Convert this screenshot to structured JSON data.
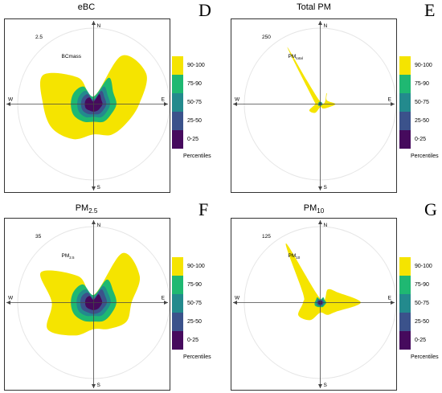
{
  "legend": {
    "levels": [
      {
        "label": "90-100",
        "color": "#f5e400"
      },
      {
        "label": "75-90",
        "color": "#1fb872"
      },
      {
        "label": "50-75",
        "color": "#238a8d"
      },
      {
        "label": "25-50",
        "color": "#3b528b"
      },
      {
        "label": "0-25",
        "color": "#460a5d"
      }
    ],
    "title": "Percentiles"
  },
  "directions": {
    "n": "N",
    "s": "S",
    "e": "E",
    "w": "W"
  },
  "chart_data": [
    {
      "type": "area",
      "panel_letter": "D",
      "title": "eBC",
      "inner_label": {
        "main": "BCmass",
        "sub": ""
      },
      "radial_tick": "2.5",
      "levels": [
        "90-100",
        "75-90",
        "50-75",
        "25-50",
        "0-25"
      ],
      "rmax": 3,
      "directions_deg": [
        0,
        30,
        60,
        90,
        120,
        150,
        180,
        210,
        240,
        270,
        300,
        330
      ],
      "series": [
        {
          "values": [
            0.3,
            2.2,
            2.4,
            1.8,
            1.5,
            1.4,
            1.2,
            1.6,
            1.9,
            2.0,
            2.3,
            1.2
          ]
        },
        {
          "values": [
            0.3,
            1.2,
            0.9,
            0.9,
            0.8,
            0.8,
            0.7,
            0.8,
            0.9,
            0.9,
            0.9,
            0.8
          ]
        },
        {
          "values": [
            0.2,
            0.8,
            0.65,
            0.65,
            0.6,
            0.6,
            0.5,
            0.6,
            0.65,
            0.65,
            0.65,
            0.6
          ]
        },
        {
          "values": [
            0.15,
            0.6,
            0.5,
            0.5,
            0.45,
            0.45,
            0.4,
            0.45,
            0.5,
            0.5,
            0.5,
            0.45
          ]
        },
        {
          "values": [
            0.1,
            0.45,
            0.35,
            0.35,
            0.3,
            0.3,
            0.3,
            0.3,
            0.35,
            0.35,
            0.35,
            0.3
          ]
        }
      ]
    },
    {
      "type": "area",
      "panel_letter": "E",
      "title": "Total PM",
      "inner_label": {
        "main": "PM",
        "sub": "total"
      },
      "radial_tick": "250",
      "levels": [
        "90-100",
        "75-90",
        "50-75",
        "25-50",
        "0-25"
      ],
      "rmax": 300,
      "directions_deg": [
        0,
        30,
        60,
        90,
        120,
        150,
        180,
        210,
        240,
        270,
        300,
        330
      ],
      "series": [
        {
          "values": [
            10,
            50,
            30,
            60,
            30,
            20,
            12,
            40,
            50,
            20,
            30,
            260
          ]
        },
        {
          "values": [
            8,
            10,
            8,
            10,
            8,
            7,
            6,
            8,
            10,
            7,
            8,
            10
          ]
        },
        {
          "values": [
            6,
            7,
            6,
            7,
            6,
            5,
            5,
            6,
            7,
            5,
            6,
            7
          ]
        },
        {
          "values": [
            4,
            5,
            4,
            5,
            4,
            4,
            4,
            4,
            5,
            4,
            4,
            5
          ]
        },
        {
          "values": [
            2,
            3,
            2,
            3,
            2,
            2,
            2,
            2,
            3,
            2,
            2,
            3
          ]
        }
      ]
    },
    {
      "type": "area",
      "panel_letter": "F",
      "title": "PM",
      "title_sub": "2.5",
      "inner_label": {
        "main": "PM",
        "sub": "2.5"
      },
      "radial_tick": "35",
      "levels": [
        "90-100",
        "75-90",
        "50-75",
        "25-50",
        "0-25"
      ],
      "rmax": 40,
      "directions_deg": [
        0,
        30,
        60,
        90,
        120,
        150,
        180,
        210,
        240,
        270,
        300,
        330
      ],
      "series": [
        {
          "values": [
            4,
            30,
            28,
            20,
            20,
            16,
            14,
            20,
            28,
            22,
            32,
            16
          ]
        },
        {
          "values": [
            4,
            14,
            12,
            12,
            11,
            11,
            10,
            11,
            12,
            12,
            12,
            11
          ]
        },
        {
          "values": [
            3,
            10,
            9,
            9,
            8,
            8,
            7,
            8,
            9,
            9,
            9,
            8
          ]
        },
        {
          "values": [
            2,
            8,
            7,
            7,
            6,
            6,
            6,
            6,
            7,
            7,
            7,
            6
          ]
        },
        {
          "values": [
            1.5,
            5,
            4.5,
            4.5,
            4,
            4,
            4,
            4,
            4.5,
            4.5,
            4.5,
            4
          ]
        }
      ]
    },
    {
      "type": "area",
      "panel_letter": "G",
      "title": "PM",
      "title_sub": "10",
      "inner_label": {
        "main": "PM",
        "sub": "10"
      },
      "radial_tick": "125",
      "levels": [
        "90-100",
        "75-90",
        "50-75",
        "25-50",
        "0-25"
      ],
      "rmax": 150,
      "directions_deg": [
        0,
        30,
        60,
        90,
        120,
        150,
        180,
        210,
        240,
        270,
        300,
        330
      ],
      "series": [
        {
          "values": [
            8,
            30,
            40,
            80,
            36,
            28,
            20,
            40,
            50,
            34,
            40,
            135
          ]
        },
        {
          "values": [
            6,
            12,
            10,
            12,
            10,
            10,
            9,
            10,
            12,
            11,
            10,
            12
          ]
        },
        {
          "values": [
            5,
            9,
            8,
            9,
            8,
            8,
            7,
            8,
            9,
            8,
            8,
            9
          ]
        },
        {
          "values": [
            4,
            6,
            6,
            6,
            6,
            6,
            5,
            6,
            6,
            6,
            6,
            6
          ]
        },
        {
          "values": [
            2,
            4,
            4,
            4,
            4,
            4,
            3,
            4,
            4,
            4,
            4,
            4
          ]
        }
      ]
    }
  ]
}
